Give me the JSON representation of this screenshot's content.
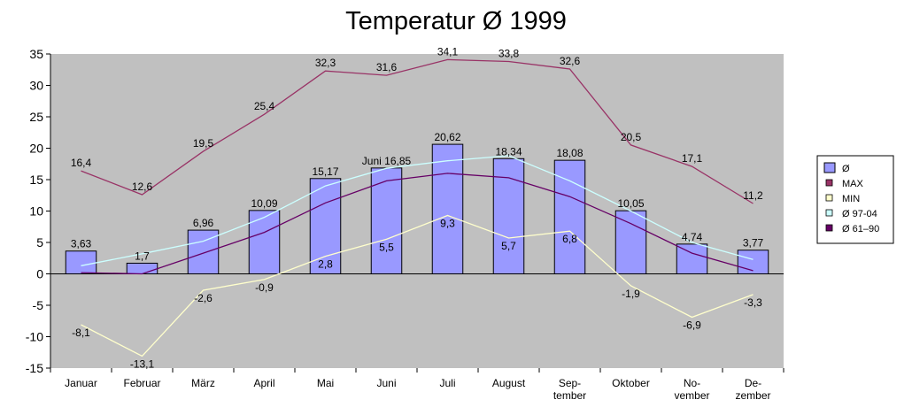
{
  "chart_data": {
    "type": "bar",
    "title": "Temperatur Ø 1999",
    "categories": [
      [
        "Januar"
      ],
      [
        "Februar"
      ],
      [
        "März"
      ],
      [
        "April"
      ],
      [
        "Mai"
      ],
      [
        "Juni"
      ],
      [
        "Juli"
      ],
      [
        "August"
      ],
      [
        "Sep-",
        "tember"
      ],
      [
        "Oktober"
      ],
      [
        "No-",
        "vember"
      ],
      [
        "De-",
        "zember"
      ]
    ],
    "ylim": [
      -15,
      35
    ],
    "yticks": [
      35,
      30,
      25,
      20,
      15,
      10,
      5,
      0,
      -5,
      -10,
      -15
    ],
    "grid": false,
    "legend_position": "right",
    "series": [
      {
        "name": "Ø",
        "kind": "bar",
        "color": "#9999ff",
        "values": [
          3.63,
          1.7,
          6.96,
          10.09,
          15.17,
          16.85,
          20.62,
          18.34,
          18.08,
          10.05,
          4.74,
          3.77
        ],
        "labels": [
          "3,63",
          "1,7",
          "6,96",
          "10,09",
          "15,17",
          "Juni 16,85",
          "20,62",
          "18,34",
          "18,08",
          "10,05",
          "4,74",
          "3,77"
        ]
      },
      {
        "name": "MAX",
        "kind": "line",
        "color": "#993366",
        "values": [
          16.4,
          12.6,
          19.5,
          25.4,
          32.3,
          31.6,
          34.1,
          33.8,
          32.6,
          20.5,
          17.1,
          11.2
        ],
        "labels": [
          "16,4",
          "12,6",
          "19,5",
          "25,4",
          "32,3",
          "31,6",
          "34,1",
          "33,8",
          "32,6",
          "20,5",
          "17,1",
          "11,2"
        ]
      },
      {
        "name": "MIN",
        "kind": "line",
        "color": "#ffffcc",
        "values": [
          -8.1,
          -13.1,
          -2.6,
          -0.9,
          2.8,
          5.5,
          9.3,
          5.7,
          6.8,
          -1.9,
          -6.9,
          -3.3
        ],
        "labels": [
          "-8,1",
          "-13,1",
          "-2,6",
          "-0,9",
          "2,8",
          "5,5",
          "9,3",
          "5,7",
          "6,8",
          "-1,9",
          "-6,9",
          "-3,3"
        ]
      },
      {
        "name": "Ø 97-04",
        "kind": "line",
        "color": "#ccffff",
        "values": [
          1.3,
          3.2,
          5.2,
          9.0,
          14.0,
          16.8,
          18.0,
          18.8,
          14.8,
          10.0,
          5.0,
          2.3
        ]
      },
      {
        "name": "Ø 61–90",
        "kind": "line",
        "color": "#660066",
        "values": [
          0.2,
          0.0,
          3.3,
          6.6,
          11.3,
          14.8,
          16.0,
          15.3,
          12.3,
          8.0,
          3.3,
          0.5
        ]
      }
    ]
  }
}
